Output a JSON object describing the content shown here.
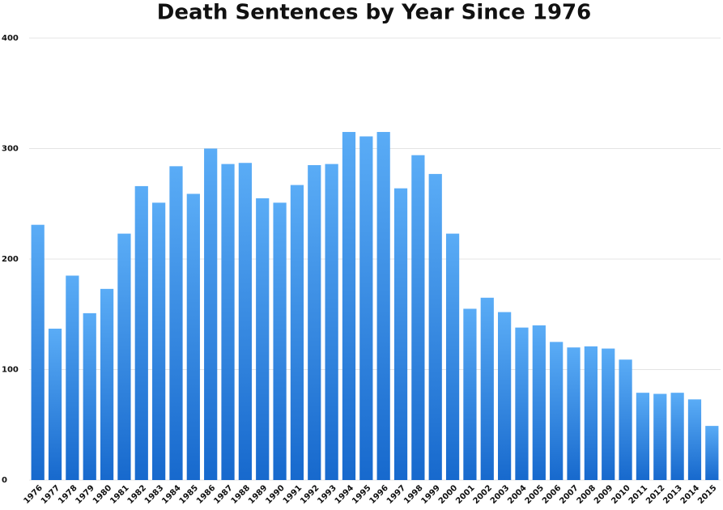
{
  "chart_data": {
    "type": "bar",
    "title": "Death Sentences by Year Since 1976",
    "categories": [
      "1976",
      "1977",
      "1978",
      "1979",
      "1980",
      "1981",
      "1982",
      "1983",
      "1984",
      "1985",
      "1986",
      "1987",
      "1988",
      "1989",
      "1990",
      "1991",
      "1992",
      "1993",
      "1994",
      "1995",
      "1996",
      "1997",
      "1998",
      "1999",
      "2000",
      "2001",
      "2002",
      "2003",
      "2004",
      "2005",
      "2006",
      "2007",
      "2008",
      "2009",
      "2010",
      "2011",
      "2012",
      "2013",
      "2014",
      "2015"
    ],
    "values": [
      231,
      137,
      185,
      151,
      173,
      223,
      266,
      251,
      284,
      259,
      300,
      286,
      287,
      255,
      251,
      267,
      285,
      286,
      315,
      311,
      315,
      264,
      294,
      277,
      223,
      155,
      165,
      152,
      138,
      140,
      125,
      120,
      121,
      119,
      109,
      79,
      78,
      79,
      73,
      49
    ],
    "gradient": [
      "#5aacf6",
      "#1769cd"
    ],
    "ylim": [
      0,
      400
    ],
    "yticks": [
      0,
      100,
      200,
      300,
      400
    ],
    "grid": true
  }
}
